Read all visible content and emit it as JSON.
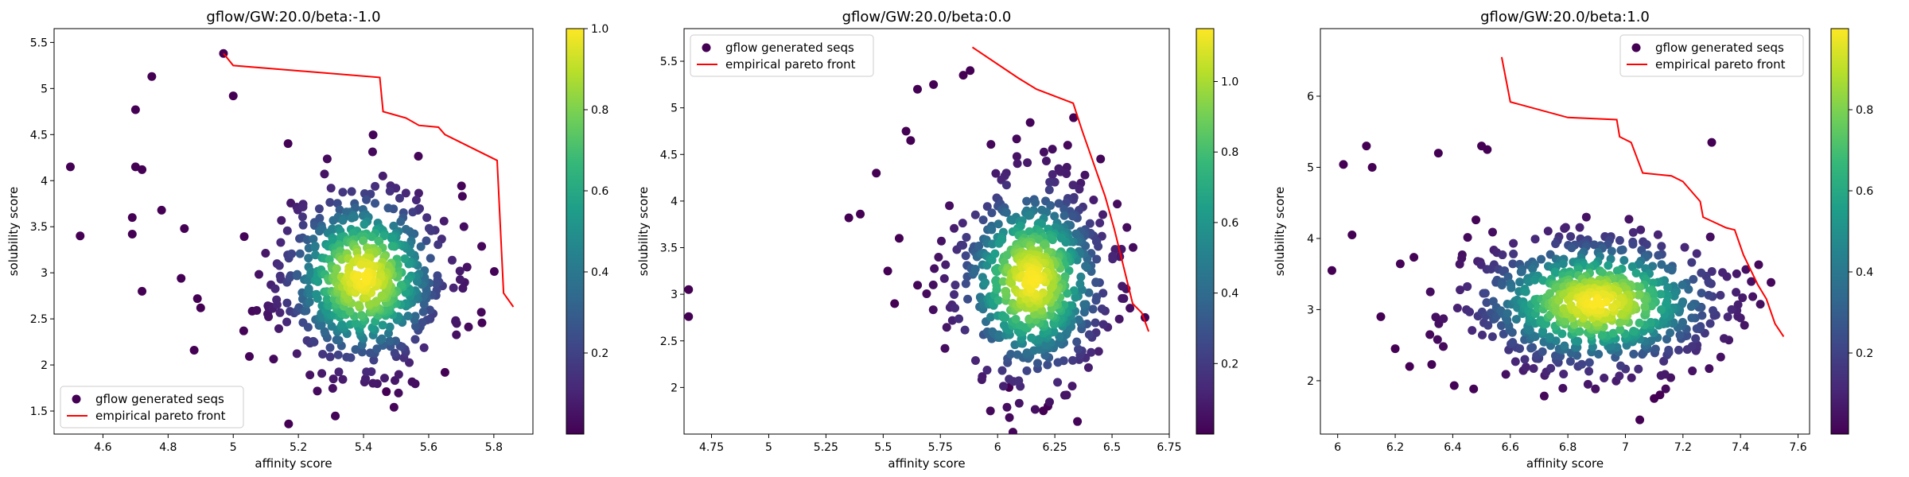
{
  "colormap": [
    "#440154",
    "#482878",
    "#3e4989",
    "#31688e",
    "#26828e",
    "#1f9e89",
    "#35b779",
    "#6ece58",
    "#b5de2b",
    "#fde725"
  ],
  "pareto_color": "#ff0000",
  "chart_data": [
    {
      "type": "scatter",
      "title": "gflow/GW:20.0/beta:-1.0",
      "xlabel": "affinity score",
      "ylabel": "solubility score",
      "xlim": [
        4.45,
        5.92
      ],
      "ylim": [
        1.25,
        5.65
      ],
      "xticks": [
        4.6,
        4.8,
        5.0,
        5.2,
        5.4,
        5.6,
        5.8
      ],
      "yticks": [
        1.5,
        2.0,
        2.5,
        3.0,
        3.5,
        4.0,
        4.5,
        5.0,
        5.5
      ],
      "colorbar": {
        "min": 0.0,
        "max": 1.0,
        "ticks": [
          0.2,
          0.4,
          0.6,
          0.8,
          1.0
        ]
      },
      "legend": {
        "position": "lower-left",
        "entries": [
          "gflow generated seqs",
          "empirical pareto front"
        ]
      },
      "cluster": {
        "cx": 5.4,
        "cy": 2.95,
        "sx": 0.13,
        "sy": 0.5,
        "rot": 0.0,
        "n": 620,
        "seed": 11
      },
      "outliers": [
        [
          4.5,
          4.15
        ],
        [
          4.53,
          3.4
        ],
        [
          4.7,
          4.77
        ],
        [
          4.75,
          5.13
        ],
        [
          4.7,
          4.15
        ],
        [
          4.72,
          4.12
        ],
        [
          4.69,
          3.6
        ],
        [
          4.69,
          3.42
        ],
        [
          4.72,
          2.8
        ],
        [
          4.78,
          3.68
        ],
        [
          4.85,
          3.48
        ],
        [
          4.84,
          2.94
        ],
        [
          4.88,
          2.16
        ],
        [
          4.89,
          2.72
        ],
        [
          4.9,
          2.62
        ],
        [
          5.17,
          1.36
        ],
        [
          5.47,
          1.71
        ],
        [
          5.65,
          1.92
        ],
        [
          4.97,
          5.38
        ],
        [
          5.0,
          4.92
        ]
      ],
      "pareto_front": [
        [
          4.97,
          5.38
        ],
        [
          5.0,
          5.25
        ],
        [
          5.45,
          5.12
        ],
        [
          5.46,
          4.75
        ],
        [
          5.53,
          4.68
        ],
        [
          5.57,
          4.6
        ],
        [
          5.63,
          4.58
        ],
        [
          5.65,
          4.5
        ],
        [
          5.81,
          4.22
        ],
        [
          5.83,
          2.78
        ],
        [
          5.86,
          2.63
        ]
      ]
    },
    {
      "type": "scatter",
      "title": "gflow/GW:20.0/beta:0.0",
      "xlabel": "affinity score",
      "ylabel": "solubility score",
      "xlim": [
        4.63,
        6.75
      ],
      "ylim": [
        1.5,
        5.85
      ],
      "xticks": [
        4.75,
        5.0,
        5.25,
        5.5,
        5.75,
        6.0,
        6.25,
        6.5,
        6.75
      ],
      "yticks": [
        2.0,
        2.5,
        3.0,
        3.5,
        4.0,
        4.5,
        5.0,
        5.5
      ],
      "colorbar": {
        "min": 0.0,
        "max": 1.15,
        "ticks": [
          0.2,
          0.4,
          0.6,
          0.8,
          1.0
        ]
      },
      "legend": {
        "position": "upper-left",
        "entries": [
          "gflow generated seqs",
          "empirical pareto front"
        ]
      },
      "cluster": {
        "cx": 6.15,
        "cy": 3.15,
        "sx": 0.17,
        "sy": 0.55,
        "rot": 0.0,
        "n": 640,
        "seed": 23
      },
      "outliers": [
        [
          4.65,
          3.05
        ],
        [
          4.65,
          2.76
        ],
        [
          5.35,
          3.82
        ],
        [
          5.4,
          3.86
        ],
        [
          5.47,
          4.3
        ],
        [
          5.52,
          3.25
        ],
        [
          5.55,
          2.9
        ],
        [
          5.57,
          3.6
        ],
        [
          5.6,
          4.75
        ],
        [
          5.62,
          4.65
        ],
        [
          5.65,
          5.2
        ],
        [
          5.72,
          5.25
        ],
        [
          5.85,
          5.35
        ],
        [
          5.88,
          5.4
        ],
        [
          6.2,
          1.75
        ],
        [
          6.22,
          1.8
        ],
        [
          6.05,
          2.0
        ]
      ],
      "pareto_front": [
        [
          5.89,
          5.65
        ],
        [
          6.09,
          5.32
        ],
        [
          6.17,
          5.2
        ],
        [
          6.33,
          5.05
        ],
        [
          6.37,
          4.75
        ],
        [
          6.47,
          4.05
        ],
        [
          6.51,
          3.7
        ],
        [
          6.59,
          2.9
        ],
        [
          6.63,
          2.8
        ],
        [
          6.66,
          2.6
        ]
      ]
    },
    {
      "type": "scatter",
      "title": "gflow/GW:20.0/beta:1.0",
      "xlabel": "affinity score",
      "ylabel": "solubility score",
      "xlim": [
        5.94,
        7.64
      ],
      "ylim": [
        1.25,
        6.95
      ],
      "xticks": [
        6.0,
        6.2,
        6.4,
        6.6,
        6.8,
        7.0,
        7.2,
        7.4,
        7.6
      ],
      "yticks": [
        2,
        3,
        4,
        5,
        6
      ],
      "colorbar": {
        "min": 0.0,
        "max": 1.0,
        "ticks": [
          0.2,
          0.4,
          0.6,
          0.8
        ]
      },
      "legend": {
        "position": "upper-right",
        "entries": [
          "gflow generated seqs",
          "empirical pareto front"
        ]
      },
      "cluster": {
        "cx": 6.9,
        "cy": 3.1,
        "sx": 0.25,
        "sy": 0.55,
        "rot": -0.55,
        "n": 700,
        "seed": 37
      },
      "outliers": [
        [
          5.98,
          3.55
        ],
        [
          6.02,
          5.04
        ],
        [
          6.05,
          4.05
        ],
        [
          6.1,
          5.3
        ],
        [
          6.12,
          5.0
        ],
        [
          6.15,
          2.9
        ],
        [
          6.2,
          2.45
        ],
        [
          6.25,
          2.2
        ],
        [
          6.35,
          5.2
        ],
        [
          6.5,
          5.3
        ],
        [
          6.52,
          5.25
        ],
        [
          7.05,
          1.45
        ],
        [
          7.1,
          1.75
        ],
        [
          7.12,
          1.8
        ],
        [
          7.3,
          5.35
        ]
      ],
      "pareto_front": [
        [
          6.57,
          6.55
        ],
        [
          6.6,
          5.92
        ],
        [
          6.8,
          5.7
        ],
        [
          6.97,
          5.67
        ],
        [
          6.98,
          5.43
        ],
        [
          7.02,
          5.35
        ],
        [
          7.06,
          4.92
        ],
        [
          7.16,
          4.88
        ],
        [
          7.2,
          4.8
        ],
        [
          7.26,
          4.52
        ],
        [
          7.27,
          4.3
        ],
        [
          7.35,
          4.15
        ],
        [
          7.38,
          4.12
        ],
        [
          7.41,
          3.77
        ],
        [
          7.46,
          3.35
        ],
        [
          7.49,
          3.15
        ],
        [
          7.52,
          2.8
        ],
        [
          7.55,
          2.62
        ]
      ]
    }
  ]
}
